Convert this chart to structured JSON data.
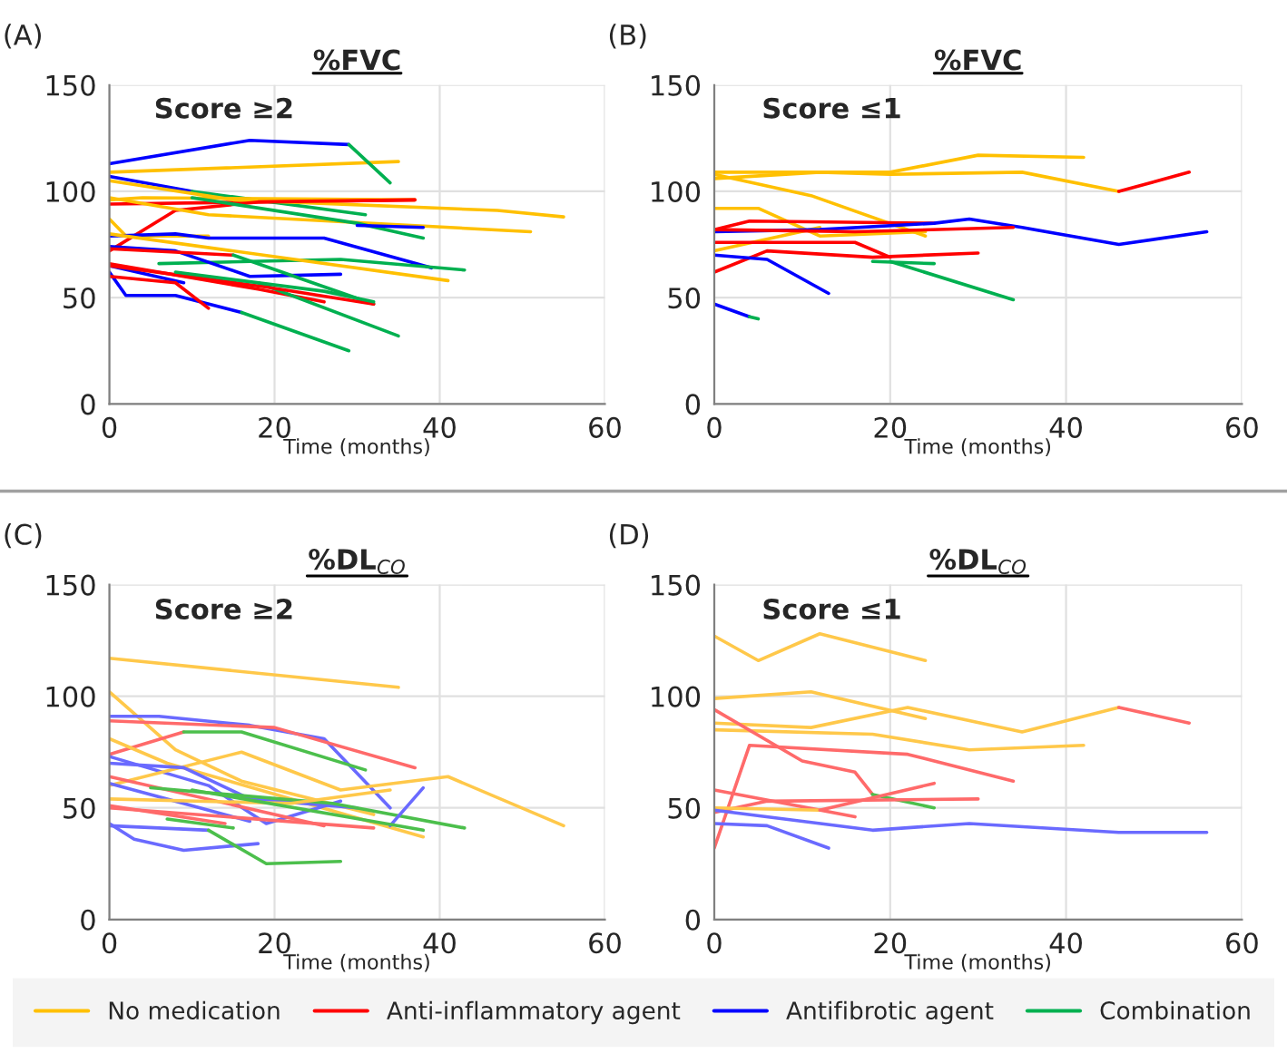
{
  "chart_data": [
    {
      "type": "line",
      "title": "%FVC",
      "subtitle": "Score ≥2",
      "annotations": [
        "(A)"
      ],
      "xlabel": "Time (months)",
      "xlim": [
        0,
        60
      ],
      "xticks": [
        0,
        20,
        40,
        60
      ],
      "ylim": [
        0,
        150
      ],
      "yticks": [
        0,
        50,
        100,
        150
      ],
      "grid": true,
      "legend": "bottom",
      "series": [
        {
          "name": "No medication",
          "color": "#ffc000",
          "x": [
            0,
            35
          ],
          "values": [
            109,
            114
          ]
        },
        {
          "name": "Anti-inflammatory agent",
          "color": "#ff0000",
          "x": [
            0,
            37
          ],
          "values": [
            94,
            96
          ]
        },
        {
          "name": "Antifibrotic agent",
          "color": "#0000ff",
          "x": [
            0,
            17,
            29
          ],
          "values": [
            113,
            124,
            122
          ]
        },
        {
          "name": "Combination",
          "color": "#00b050",
          "x": [
            29,
            34
          ],
          "values": [
            122,
            104
          ]
        },
        {
          "color": "#0000ff",
          "x": [
            0,
            10
          ],
          "values": [
            107,
            100
          ]
        },
        {
          "color": "#00b050",
          "x": [
            10,
            31
          ],
          "values": [
            100,
            89
          ]
        },
        {
          "color": "#ffc000",
          "x": [
            0,
            15,
            47,
            55
          ],
          "values": [
            105,
            96,
            91,
            88
          ]
        },
        {
          "color": "#ffc000",
          "x": [
            0,
            4,
            37
          ],
          "values": [
            96,
            97,
            96
          ]
        },
        {
          "color": "#ff0000",
          "x": [
            0,
            8,
            18,
            37
          ],
          "values": [
            72,
            91,
            95,
            96
          ]
        },
        {
          "color": "#ffc000",
          "x": [
            0,
            12,
            51
          ],
          "values": [
            97,
            89,
            81
          ]
        },
        {
          "color": "#00b050",
          "x": [
            10,
            30,
            38
          ],
          "values": [
            97,
            85,
            78
          ]
        },
        {
          "color": "#0000ff",
          "x": [
            30,
            38
          ],
          "values": [
            84,
            83
          ]
        },
        {
          "color": "#ffc000",
          "x": [
            0,
            2,
            12
          ],
          "values": [
            87,
            79,
            79
          ]
        },
        {
          "color": "#0000ff",
          "x": [
            0,
            8,
            12,
            26,
            39
          ],
          "values": [
            79,
            80,
            78,
            78,
            64
          ]
        },
        {
          "color": "#00b050",
          "x": [
            6,
            28,
            43
          ],
          "values": [
            66,
            68,
            63
          ]
        },
        {
          "color": "#0000ff",
          "x": [
            0,
            8,
            17,
            28
          ],
          "values": [
            74,
            72,
            60,
            61
          ]
        },
        {
          "color": "#ffc000",
          "x": [
            0,
            41
          ],
          "values": [
            80,
            58
          ]
        },
        {
          "color": "#ff0000",
          "x": [
            0,
            15
          ],
          "values": [
            73,
            70
          ]
        },
        {
          "color": "#00b050",
          "x": [
            15,
            32
          ],
          "values": [
            70,
            47
          ]
        },
        {
          "color": "#0000ff",
          "x": [
            0,
            9
          ],
          "values": [
            65,
            57
          ]
        },
        {
          "color": "#0000ff",
          "x": [
            0,
            2,
            8,
            16
          ],
          "values": [
            62,
            51,
            51,
            43
          ]
        },
        {
          "color": "#00b050",
          "x": [
            16,
            29
          ],
          "values": [
            43,
            25
          ]
        },
        {
          "color": "#ff0000",
          "x": [
            0,
            8,
            12
          ],
          "values": [
            60,
            57,
            45
          ]
        },
        {
          "color": "#ff0000",
          "x": [
            0,
            18,
            26
          ],
          "values": [
            66,
            54,
            48
          ]
        },
        {
          "color": "#00b050",
          "x": [
            18,
            35
          ],
          "values": [
            57,
            32
          ]
        },
        {
          "color": "#ff0000",
          "x": [
            0,
            19,
            32
          ],
          "values": [
            65,
            55,
            47
          ]
        },
        {
          "color": "#00b050",
          "x": [
            8,
            26,
            32
          ],
          "values": [
            62,
            53,
            48
          ]
        }
      ]
    },
    {
      "type": "line",
      "title": "%FVC",
      "subtitle": "Score ≤1",
      "annotations": [
        "(B)"
      ],
      "xlabel": "Time (months)",
      "xlim": [
        0,
        60
      ],
      "xticks": [
        0,
        20,
        40,
        60
      ],
      "ylim": [
        0,
        150
      ],
      "yticks": [
        0,
        50,
        100,
        150
      ],
      "grid": true,
      "series": [
        {
          "color": "#ffc000",
          "x": [
            0,
            20,
            30,
            42
          ],
          "values": [
            109,
            109,
            117,
            116
          ]
        },
        {
          "color": "#ffc000",
          "x": [
            0,
            12,
            20,
            35,
            46
          ],
          "values": [
            106,
            109,
            108,
            109,
            100
          ]
        },
        {
          "color": "#ff0000",
          "x": [
            46,
            54
          ],
          "values": [
            100,
            109
          ]
        },
        {
          "color": "#ffc000",
          "x": [
            0,
            11,
            24
          ],
          "values": [
            108,
            98,
            79
          ]
        },
        {
          "color": "#ffc000",
          "x": [
            0,
            5,
            12,
            24
          ],
          "values": [
            92,
            92,
            79,
            81
          ]
        },
        {
          "color": "#ffc000",
          "x": [
            0,
            12
          ],
          "values": [
            72,
            83
          ]
        },
        {
          "color": "#ff0000",
          "x": [
            0,
            4,
            25
          ],
          "values": [
            82,
            86,
            85
          ]
        },
        {
          "color": "#0000ff",
          "x": [
            0,
            12,
            25,
            29,
            35,
            46,
            56
          ],
          "values": [
            81,
            82,
            85,
            87,
            83,
            75,
            81
          ]
        },
        {
          "color": "#ff0000",
          "x": [
            0,
            16,
            34
          ],
          "values": [
            82,
            81,
            83
          ]
        },
        {
          "color": "#ff0000",
          "x": [
            0,
            16,
            20
          ],
          "values": [
            76,
            76,
            69
          ]
        },
        {
          "color": "#ff0000",
          "x": [
            0,
            6,
            18,
            30
          ],
          "values": [
            62,
            72,
            69,
            71
          ]
        },
        {
          "color": "#0000ff",
          "x": [
            0,
            6,
            13
          ],
          "values": [
            70,
            68,
            52
          ]
        },
        {
          "color": "#00b050",
          "x": [
            18,
            25
          ],
          "values": [
            67,
            66
          ]
        },
        {
          "color": "#00b050",
          "x": [
            20,
            34
          ],
          "values": [
            67,
            49
          ]
        },
        {
          "color": "#0000ff",
          "x": [
            0,
            4
          ],
          "values": [
            47,
            41
          ]
        },
        {
          "color": "#00b050",
          "x": [
            4,
            5
          ],
          "values": [
            41,
            40
          ]
        }
      ]
    },
    {
      "type": "line",
      "title": "%DL$_{CO}$",
      "subtitle": "Score ≥2",
      "annotations": [
        "(C)"
      ],
      "xlabel": "Time (months)",
      "xlim": [
        0,
        60
      ],
      "xticks": [
        0,
        20,
        40,
        60
      ],
      "ylim": [
        0,
        150
      ],
      "yticks": [
        0,
        50,
        100,
        150
      ],
      "grid": true,
      "series": [
        {
          "color": "#ffc84a",
          "x": [
            0,
            35
          ],
          "values": [
            117,
            104
          ]
        },
        {
          "color": "#ffc84a",
          "x": [
            0,
            8,
            16,
            32
          ],
          "values": [
            102,
            76,
            62,
            47
          ]
        },
        {
          "color": "#6a6aff",
          "x": [
            0,
            6,
            17,
            26,
            34
          ],
          "values": [
            91,
            91,
            87,
            81,
            50
          ]
        },
        {
          "color": "#ff6a6a",
          "x": [
            0,
            20,
            37
          ],
          "values": [
            89,
            86,
            68
          ]
        },
        {
          "color": "#ff6a6a",
          "x": [
            0,
            9
          ],
          "values": [
            74,
            84
          ]
        },
        {
          "color": "#4cbf4c",
          "x": [
            9,
            16,
            31
          ],
          "values": [
            84,
            84,
            67
          ]
        },
        {
          "color": "#ffc84a",
          "x": [
            0,
            7,
            38
          ],
          "values": [
            81,
            70,
            37
          ]
        },
        {
          "color": "#6a6aff",
          "x": [
            0,
            12,
            19,
            28
          ],
          "values": [
            73,
            60,
            43,
            53
          ]
        },
        {
          "color": "#ffc84a",
          "x": [
            0,
            16,
            28,
            41,
            55
          ],
          "values": [
            60,
            75,
            58,
            64,
            42
          ]
        },
        {
          "color": "#6a6aff",
          "x": [
            0,
            9,
            17,
            30
          ],
          "values": [
            70,
            68,
            54,
            50
          ]
        },
        {
          "color": "#ff6a6a",
          "x": [
            0,
            26
          ],
          "values": [
            64,
            42
          ]
        },
        {
          "color": "#6a6aff",
          "x": [
            0,
            17
          ],
          "values": [
            61,
            44
          ]
        },
        {
          "color": "#4cbf4c",
          "x": [
            5,
            27,
            43
          ],
          "values": [
            59,
            52,
            41
          ]
        },
        {
          "color": "#ffc84a",
          "x": [
            0,
            22,
            34
          ],
          "values": [
            54,
            52,
            58
          ]
        },
        {
          "color": "#6a6aff",
          "x": [
            34,
            38
          ],
          "values": [
            42,
            59
          ]
        },
        {
          "color": "#4cbf4c",
          "x": [
            10,
            38
          ],
          "values": [
            58,
            40
          ]
        },
        {
          "color": "#ff6a6a",
          "x": [
            0,
            14
          ],
          "values": [
            51,
            43
          ]
        },
        {
          "color": "#4cbf4c",
          "x": [
            7,
            15
          ],
          "values": [
            45,
            41
          ]
        },
        {
          "color": "#ff6a6a",
          "x": [
            0,
            32
          ],
          "values": [
            50,
            41
          ]
        },
        {
          "color": "#6a6aff",
          "x": [
            0,
            3,
            9,
            18
          ],
          "values": [
            43,
            36,
            31,
            34
          ]
        },
        {
          "color": "#6a6aff",
          "x": [
            0,
            12
          ],
          "values": [
            42,
            40
          ]
        },
        {
          "color": "#4cbf4c",
          "x": [
            12,
            19,
            28
          ],
          "values": [
            40,
            25,
            26
          ]
        }
      ]
    },
    {
      "type": "line",
      "title": "%DL$_{CO}$",
      "subtitle": "Score ≤1",
      "annotations": [
        "(D)"
      ],
      "xlabel": "Time (months)",
      "xlim": [
        0,
        60
      ],
      "xticks": [
        0,
        20,
        40,
        60
      ],
      "ylim": [
        0,
        150
      ],
      "yticks": [
        0,
        50,
        100,
        150
      ],
      "grid": true,
      "series": [
        {
          "color": "#ffc84a",
          "x": [
            0,
            5,
            12,
            24
          ],
          "values": [
            127,
            116,
            128,
            116
          ]
        },
        {
          "color": "#ffc84a",
          "x": [
            0,
            11,
            24
          ],
          "values": [
            99,
            102,
            90
          ]
        },
        {
          "color": "#ffc84a",
          "x": [
            0,
            11,
            22,
            35,
            46
          ],
          "values": [
            88,
            86,
            95,
            84,
            95
          ]
        },
        {
          "color": "#ff6a6a",
          "x": [
            46,
            54
          ],
          "values": [
            95,
            88
          ]
        },
        {
          "color": "#ffc84a",
          "x": [
            0,
            18,
            29,
            42
          ],
          "values": [
            85,
            83,
            76,
            78
          ]
        },
        {
          "color": "#ff6a6a",
          "x": [
            0,
            10,
            16,
            18
          ],
          "values": [
            94,
            71,
            66,
            56
          ]
        },
        {
          "color": "#4cbf4c",
          "x": [
            18,
            25
          ],
          "values": [
            56,
            50
          ]
        },
        {
          "color": "#ff6a6a",
          "x": [
            0,
            4,
            22,
            34
          ],
          "values": [
            32,
            78,
            74,
            62
          ]
        },
        {
          "color": "#ff6a6a",
          "x": [
            0,
            16
          ],
          "values": [
            58,
            46
          ]
        },
        {
          "color": "#ff6a6a",
          "x": [
            0,
            6,
            30
          ],
          "values": [
            48,
            53,
            54
          ]
        },
        {
          "color": "#ffc84a",
          "x": [
            0,
            12
          ],
          "values": [
            50,
            49
          ]
        },
        {
          "color": "#ff6a6a",
          "x": [
            12,
            25
          ],
          "values": [
            49,
            61
          ]
        },
        {
          "color": "#6a6aff",
          "x": [
            0,
            18,
            29,
            46,
            56
          ],
          "values": [
            49,
            40,
            43,
            39,
            39
          ]
        },
        {
          "color": "#6a6aff",
          "x": [
            0,
            6,
            13
          ],
          "values": [
            43,
            42,
            32
          ]
        }
      ]
    }
  ]
}
